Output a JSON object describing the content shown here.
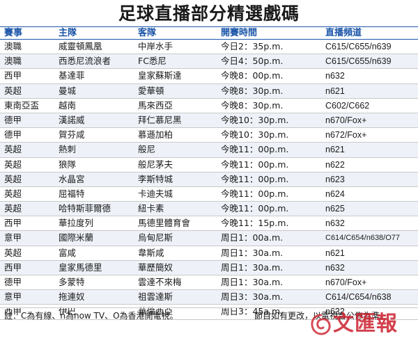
{
  "title": "足球直播部分精選戲碼",
  "headers": {
    "league": "賽事",
    "home": "主隊",
    "away": "客隊",
    "time": "開賽時間",
    "channel": "直播頻道"
  },
  "rows": [
    {
      "league": "澳職",
      "home": "威靈頓鳳凰",
      "away": "中岸水手",
      "time": "今日2：35p.m.",
      "channel": "C615/C655/n639"
    },
    {
      "league": "澳職",
      "home": "西悉尼流浪者",
      "away": "FC悉尼",
      "time": "今日4：50p.m.",
      "channel": "C615/C655/n639"
    },
    {
      "league": "西甲",
      "home": "基達菲",
      "away": "皇家蘇斯達",
      "time": "今晚8：00p.m.",
      "channel": "n632"
    },
    {
      "league": "英超",
      "home": "曼城",
      "away": "愛華頓",
      "time": "今晚8：30p.m.",
      "channel": "n621"
    },
    {
      "league": "東南亞盃",
      "home": "越南",
      "away": "馬來西亞",
      "time": "今晚8：30p.m.",
      "channel": "C602/C662"
    },
    {
      "league": "德甲",
      "home": "漢諾威",
      "away": "拜仁慕尼黑",
      "time": "今晚10：30p.m.",
      "channel": "n670/Fox+"
    },
    {
      "league": "德甲",
      "home": "賀芬咸",
      "away": "慕遜加柏",
      "time": "今晚10：30p.m.",
      "channel": "n672/Fox+"
    },
    {
      "league": "英超",
      "home": "熱刺",
      "away": "般尼",
      "time": "今晚11：00p.m.",
      "channel": "n621"
    },
    {
      "league": "英超",
      "home": "狼隊",
      "away": "般尼茅夫",
      "time": "今晚11：00p.m.",
      "channel": "n622"
    },
    {
      "league": "英超",
      "home": "水晶宮",
      "away": "李斯特城",
      "time": "今晚11：00p.m.",
      "channel": "n623"
    },
    {
      "league": "英超",
      "home": "屈福特",
      "away": "卡迪夫城",
      "time": "今晚11：00p.m.",
      "channel": "n624"
    },
    {
      "league": "英超",
      "home": "哈特斯菲爾德",
      "away": "紐卡素",
      "time": "今晚11：00p.m.",
      "channel": "n625"
    },
    {
      "league": "西甲",
      "home": "華拉度列",
      "away": "馬德里體育會",
      "time": "今晚11：15p.m.",
      "channel": "n632"
    },
    {
      "league": "意甲",
      "home": "國際米蘭",
      "away": "烏甸尼斯",
      "time": "周日1：00a.m.",
      "channel": "C614/C654/n638/O77"
    },
    {
      "league": "英超",
      "home": "富咸",
      "away": "韋斯咸",
      "time": "周日1：30a.m.",
      "channel": "n621"
    },
    {
      "league": "西甲",
      "home": "皇家馬德里",
      "away": "華歷簡奴",
      "time": "周日1：30a.m.",
      "channel": "n632"
    },
    {
      "league": "德甲",
      "home": "多蒙特",
      "away": "雲達不來梅",
      "time": "周日1：30a.m.",
      "channel": "n670/Fox+"
    },
    {
      "league": "意甲",
      "home": "拖連奴",
      "away": "祖雲達斯",
      "time": "周日3：30a.m.",
      "channel": "C614/C654/n638"
    },
    {
      "league": "西甲",
      "home": "伊巴",
      "away": "華倫西亞",
      "time": "周日3：45a.m.",
      "channel": "n632"
    }
  ],
  "notes": {
    "left": "註：C為有線、n為now TV、O為香港開電視。",
    "right": "節目如有更改，以電視台公佈為準。"
  },
  "logo": {
    "text": "文匯報"
  },
  "colors": {
    "header": "#1b55a8",
    "logo": "#cc1f2d"
  }
}
